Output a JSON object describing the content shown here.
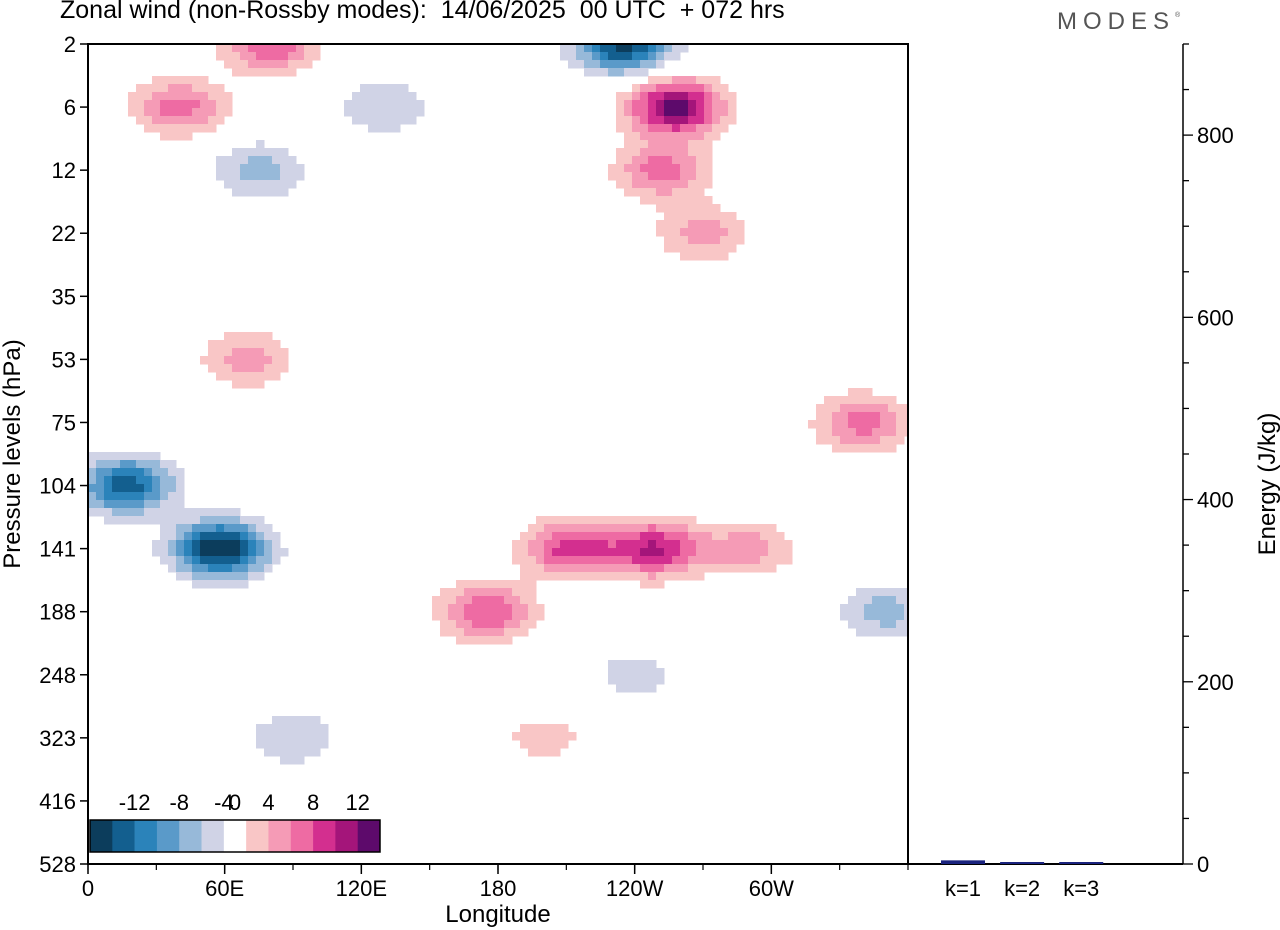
{
  "title": "Zonal wind (non-Rossby modes):  14/06/2025  00 UTC  + 072 hrs",
  "brand": "MODES",
  "chart_data": [
    {
      "type": "heatmap",
      "title": "Zonal wind (non-Rossby modes):  14/06/2025  00 UTC  + 072 hrs",
      "xlabel": "Longitude",
      "ylabel": "Pressure levels (hPa)",
      "x_ticks": [
        "0",
        "60E",
        "120E",
        "180",
        "120W",
        "60W"
      ],
      "x_tick_values": [
        0,
        60,
        120,
        180,
        240,
        300
      ],
      "xlim": [
        0,
        360
      ],
      "y_ticks": [
        "2",
        "6",
        "12",
        "22",
        "35",
        "53",
        "75",
        "104",
        "141",
        "188",
        "248",
        "323",
        "416",
        "528"
      ],
      "colorbar": {
        "labels": [
          "-12",
          "-8",
          "-4",
          "0",
          "4",
          "8",
          "12"
        ],
        "label_values": [
          -12,
          -8,
          -4,
          0,
          4,
          8,
          12
        ],
        "levels": [
          -14,
          -12,
          -10,
          -8,
          -6,
          -4,
          -2,
          2,
          4,
          6,
          8,
          10,
          12,
          14
        ],
        "colors": [
          "#0c3d5c",
          "#135f8f",
          "#2b83ba",
          "#5a9ac9",
          "#97b9d9",
          "#d0d3e6",
          "#ffffff",
          "#f9c6c6",
          "#f59bb6",
          "#ee6ba3",
          "#d32f8f",
          "#a4157a",
          "#5d0a6b"
        ]
      },
      "features": [
        {
          "lon": 58,
          "level": "141",
          "value": -14
        },
        {
          "lon": 17,
          "level": "104",
          "value": -11
        },
        {
          "lon": 235,
          "level": "2",
          "value": -13
        },
        {
          "lon": 258,
          "level": "6",
          "value": 13
        },
        {
          "lon": 80,
          "level": "2",
          "value": 8
        },
        {
          "lon": 40,
          "level": "6",
          "value": 7
        },
        {
          "lon": 252,
          "level": "12",
          "value": 7
        },
        {
          "lon": 270,
          "level": "22",
          "value": 5
        },
        {
          "lon": 70,
          "level": "53",
          "value": 5
        },
        {
          "lon": 175,
          "level": "188",
          "value": 8
        },
        {
          "lon": 212,
          "level": "141",
          "value": 9
        },
        {
          "lon": 249,
          "level": "141",
          "value": 10
        },
        {
          "lon": 290,
          "level": "141",
          "value": 5
        },
        {
          "lon": 340,
          "level": "75",
          "value": 7
        },
        {
          "lon": 200,
          "level": "323",
          "value": 3
        },
        {
          "lon": 90,
          "level": "323",
          "value": -4
        },
        {
          "lon": 350,
          "level": "188",
          "value": -5
        },
        {
          "lon": 130,
          "level": "6",
          "value": -4
        },
        {
          "lon": 75,
          "level": "12",
          "value": -5
        },
        {
          "lon": 240,
          "level": "248",
          "value": -3
        }
      ]
    },
    {
      "type": "bar",
      "ylabel": "Energy (J/kg)",
      "categories": [
        "k=1",
        "k=2",
        "k=3"
      ],
      "values": [
        4,
        1.5,
        0.8
      ],
      "ylim": [
        0,
        900
      ],
      "y_ticks": [
        0,
        200,
        400,
        600,
        800
      ],
      "bar_color": "#1a237e"
    }
  ]
}
